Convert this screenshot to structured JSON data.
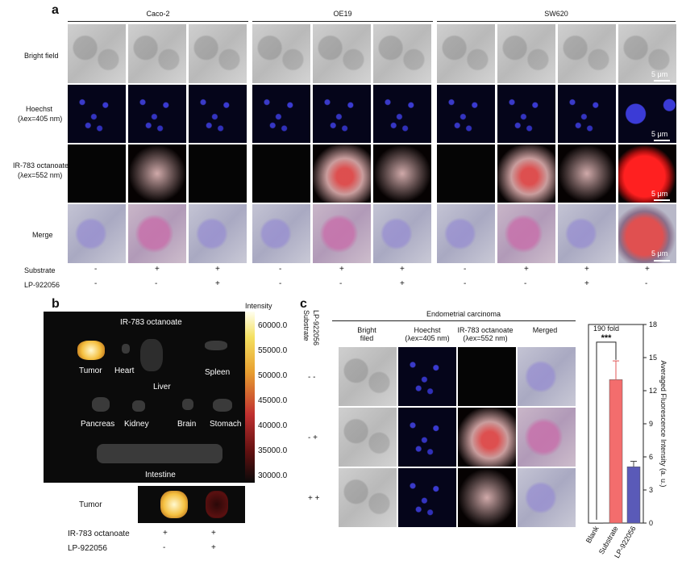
{
  "panel_a": {
    "label": "a",
    "groups": [
      "Caco-2",
      "OE19",
      "SW620"
    ],
    "rows": [
      "Bright field",
      "Hoechst",
      "(λex=405 nm)",
      "IR-783 octanoate",
      "(λex=552 nm)",
      "Merge"
    ],
    "scale_label": "5 μm",
    "substrate_label": "Substrate",
    "inhibitor_label": "LP-922056",
    "substrate": [
      "-",
      "+",
      "+",
      "-",
      "+",
      "+",
      "-",
      "+",
      "+",
      "+"
    ],
    "inhibitor": [
      "-",
      "-",
      "+",
      "-",
      "-",
      "+",
      "-",
      "-",
      "+",
      "-"
    ]
  },
  "panel_b": {
    "label": "b",
    "image_title": "IR-783 octanoate",
    "colorbar_title": "Intensity",
    "colorbar_ticks": [
      "60000.0",
      "55000.0",
      "50000.0",
      "45000.0",
      "40000.0",
      "35000.0",
      "30000.0"
    ],
    "organs": [
      "Tumor",
      "Heart",
      "Liver",
      "Spleen",
      "Pancreas",
      "Kidney",
      "Brain",
      "Stomach",
      "Intestine"
    ],
    "tumor_label": "Tumor",
    "row1_label": "IR-783 octanoate",
    "row2_label": "LP-922056",
    "row1_signs": [
      "+",
      "+"
    ],
    "row2_signs": [
      "-",
      "+"
    ]
  },
  "panel_c": {
    "label": "c",
    "substrate_label": "Substrate",
    "inhibitor_label": "LP-922056",
    "tissue_title": "Endometrial carcinoma",
    "columns": [
      "Bright",
      "filed",
      "Hoechst",
      "(λex=405 nm)",
      "IR-783 octanoate",
      "(λex=552 nm)",
      "Merged"
    ],
    "row_signs": [
      "-  -",
      "-  +",
      "+  +"
    ]
  },
  "chart_data": {
    "type": "bar",
    "categories": [
      "Blank",
      "Substrate",
      "LP-922056"
    ],
    "values": [
      0,
      13.0,
      5.1
    ],
    "errors": [
      0,
      1.7,
      0.5
    ],
    "colors": [
      "#cccccc",
      "#f36d6d",
      "#5a5ab8"
    ],
    "ylabel": "Averaged Fluorescence Intensity (a. u.)",
    "ylim": [
      0,
      18
    ],
    "yticks": [
      "0",
      "3",
      "6",
      "9",
      "12",
      "15",
      "18"
    ],
    "annotation": "190 fold",
    "significance": "***"
  }
}
